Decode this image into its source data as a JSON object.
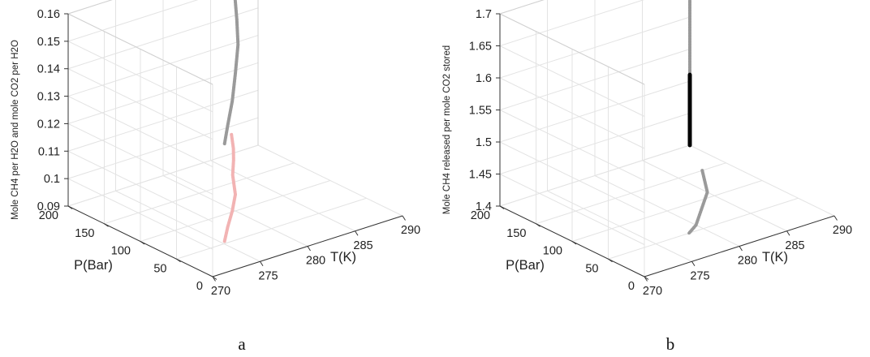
{
  "chart_data": [
    {
      "type": "line3d",
      "panel_label": "a",
      "title": "",
      "xlabel": "T(K)",
      "ylabel": "P(Bar)",
      "zlabel": "Mole CH4 per H2O and mole CO2 per H2O",
      "xlim": [
        270,
        290
      ],
      "ylim": [
        0,
        200
      ],
      "zlim": [
        0.09,
        0.16
      ],
      "x_ticks": [
        "270",
        "275",
        "280",
        "285",
        "290"
      ],
      "y_ticks": [
        "0",
        "50",
        "100",
        "150",
        "200"
      ],
      "z_ticks": [
        "0.09",
        "0.1",
        "0.11",
        "0.12",
        "0.13",
        "0.14",
        "0.15",
        "0.16"
      ],
      "grid": true,
      "series": [
        {
          "color": "#9a9a9a",
          "points": [
            {
              "x": 287.2,
              "y": 200,
              "z": 0.164
            },
            {
              "x": 286.5,
              "y": 190,
              "z": 0.163
            },
            {
              "x": 285.5,
              "y": 175,
              "z": 0.16
            },
            {
              "x": 284.5,
              "y": 160,
              "z": 0.156
            },
            {
              "x": 283.2,
              "y": 140,
              "z": 0.151
            },
            {
              "x": 281.8,
              "y": 120,
              "z": 0.146
            },
            {
              "x": 280.0,
              "y": 100,
              "z": 0.14
            },
            {
              "x": 278.0,
              "y": 78,
              "z": 0.135
            },
            {
              "x": 276.0,
              "y": 58,
              "z": 0.131
            },
            {
              "x": 274.3,
              "y": 40,
              "z": 0.1285
            }
          ]
        },
        {
          "color": "#f2b3b3",
          "points": [
            {
              "x": 287.2,
              "y": 200,
              "z": 0.097
            },
            {
              "x": 285.5,
              "y": 175,
              "z": 0.097
            },
            {
              "x": 284.0,
              "y": 155,
              "z": 0.097
            },
            {
              "x": 282.0,
              "y": 130,
              "z": 0.097
            },
            {
              "x": 280.0,
              "y": 100,
              "z": 0.096
            },
            {
              "x": 278.0,
              "y": 78,
              "z": 0.095
            },
            {
              "x": 276.0,
              "y": 58,
              "z": 0.094
            },
            {
              "x": 274.3,
              "y": 40,
              "z": 0.093
            }
          ]
        }
      ]
    },
    {
      "type": "line3d",
      "panel_label": "b",
      "title": "",
      "xlabel": "T(K)",
      "ylabel": "P(Bar)",
      "zlabel": "Mole CH4 released per mole CO2 stored",
      "xlim": [
        270,
        290
      ],
      "ylim": [
        0,
        200
      ],
      "zlim": [
        1.4,
        1.7
      ],
      "x_ticks": [
        "270",
        "275",
        "280",
        "285",
        "290"
      ],
      "y_ticks": [
        "0",
        "50",
        "100",
        "150",
        "200"
      ],
      "z_ticks": [
        "1.4",
        "1.45",
        "1.5",
        "1.55",
        "1.6",
        "1.65",
        "1.7"
      ],
      "grid": true,
      "series": [
        {
          "color": "#9a9a9a",
          "points": [
            {
              "x": 290,
              "y": 200,
              "z": 1.7
            },
            {
              "x": 290,
              "y": 200,
              "z": 1.66
            },
            {
              "x": 290,
              "y": 200,
              "z": 1.62
            },
            {
              "x": 290,
              "y": 200,
              "z": 1.58
            },
            {
              "x": 290,
              "y": 200,
              "z": 1.55
            },
            {
              "x": 290,
              "y": 200,
              "z": 1.53
            },
            {
              "x": 290,
              "y": 200,
              "z": 1.51
            }
          ]
        },
        {
          "color": "#000000",
          "points": [
            {
              "x": 290,
              "y": 200,
              "z": 1.51
            },
            {
              "x": 290,
              "y": 200,
              "z": 1.4
            }
          ]
        },
        {
          "color": "#9a9a9a",
          "points": [
            {
              "x": 287.5,
              "y": 150,
              "z": 1.4
            },
            {
              "x": 285.0,
              "y": 110,
              "z": 1.4
            },
            {
              "x": 282.0,
              "y": 80,
              "z": 1.4
            },
            {
              "x": 280.0,
              "y": 60,
              "z": 1.4
            },
            {
              "x": 278.5,
              "y": 50,
              "z": 1.4
            }
          ]
        }
      ]
    }
  ]
}
